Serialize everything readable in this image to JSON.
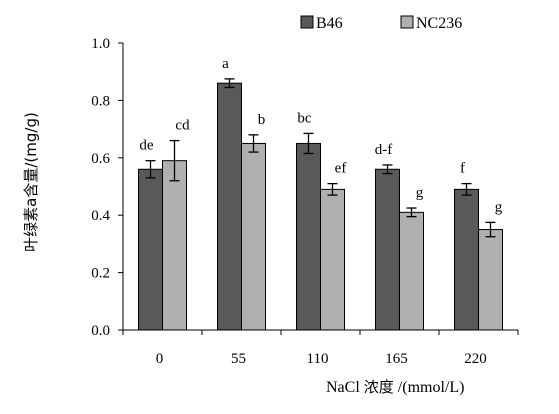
{
  "chart_data": {
    "type": "bar",
    "categories": [
      "0",
      "55",
      "110",
      "165",
      "220"
    ],
    "xlabel_prefix": "NaCl",
    "xlabel_cn": "浓度",
    "xlabel_unit": " /(mmol/L)",
    "ylabel": "叶绿素a含量/(mg/g)",
    "ylim": [
      0,
      1.0
    ],
    "yticks": [
      "0.0",
      "0.2",
      "0.4",
      "0.6",
      "0.8",
      "1.0"
    ],
    "grid": false,
    "legend_position": "top-right",
    "series": [
      {
        "name": "B46",
        "color": "#595959",
        "values": [
          0.56,
          0.86,
          0.65,
          0.56,
          0.49
        ],
        "errors": [
          0.03,
          0.015,
          0.035,
          0.015,
          0.02
        ],
        "letters": [
          "de",
          "a",
          "bc",
          "d-f",
          "f"
        ]
      },
      {
        "name": "NC236",
        "color": "#b0b0b0",
        "values": [
          0.59,
          0.65,
          0.49,
          0.41,
          0.35
        ],
        "errors": [
          0.07,
          0.03,
          0.02,
          0.015,
          0.025
        ],
        "letters": [
          "cd",
          "b",
          "ef",
          "g",
          "g"
        ]
      }
    ]
  }
}
